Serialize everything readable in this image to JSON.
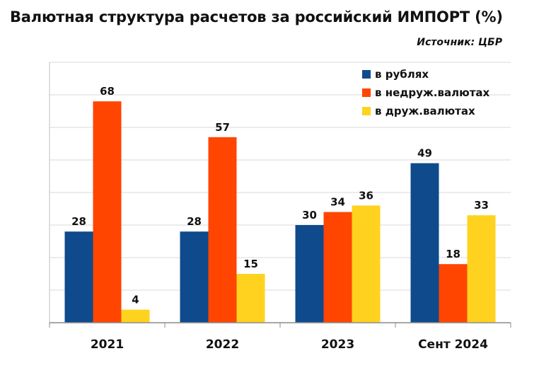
{
  "title": "Валютная структура расчетов за российский ИМПОРТ (%)",
  "source": "Источник: ЦБР",
  "chart_data": {
    "type": "bar",
    "categories": [
      "2021",
      "2022",
      "2023",
      "Сент 2024"
    ],
    "series": [
      {
        "name": "в рублях",
        "color": "#0f4a8c",
        "values": [
          28,
          28,
          30,
          49
        ]
      },
      {
        "name": "в недруж.валютах",
        "color": "#ff4500",
        "values": [
          68,
          57,
          34,
          18
        ]
      },
      {
        "name": "в друж.валютах",
        "color": "#ffd21f",
        "values": [
          4,
          15,
          36,
          33
        ]
      }
    ],
    "ylim": [
      0,
      80
    ],
    "grid": true,
    "legend": "top-right"
  }
}
